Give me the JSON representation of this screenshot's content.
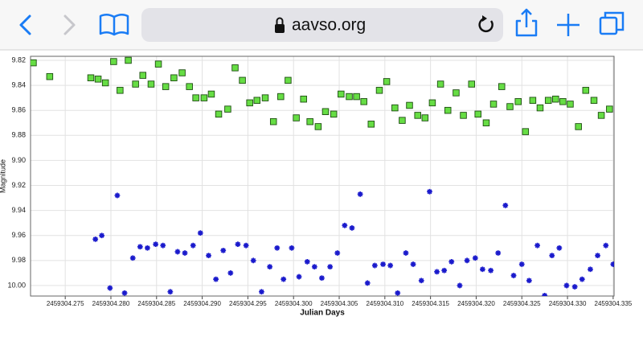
{
  "browser": {
    "url": "aavso.org"
  },
  "chart_data": {
    "type": "scatter",
    "x_label": "Julian Days",
    "y_label": "Magnitude",
    "xlim": [
      2459304.2712,
      2459304.3351
    ],
    "ylim": [
      9.8168,
      10.0084
    ],
    "y_inverted": true,
    "grid": true,
    "xticks": [
      2459304.275,
      {
        "value": 2459304.28,
        "label": "2459304.280"
      },
      2459304.285,
      {
        "value": 2459304.29,
        "label": "2459304.290"
      },
      2459304.295,
      {
        "value": 2459304.3,
        "label": "2459304.300"
      },
      2459304.305,
      {
        "value": 2459304.31,
        "label": "2459304.310"
      },
      2459304.315,
      {
        "value": 2459304.32,
        "label": "2459304.320"
      },
      2459304.325,
      {
        "value": 2459304.33,
        "label": "2459304.330"
      },
      2459304.335
    ],
    "yticks": [
      9.82,
      9.84,
      9.86,
      9.88,
      {
        "value": 9.9,
        "label": "9.90"
      },
      9.92,
      9.94,
      9.96,
      9.98,
      {
        "value": 10,
        "label": "10.00"
      }
    ],
    "series": [
      {
        "marker": "square",
        "color": "#66dd44",
        "x": [
          2459304.2715,
          2459304.2733,
          2459304.2778,
          2459304.2786,
          2459304.2794,
          2459304.2803,
          2459304.281,
          2459304.2819,
          2459304.2827,
          2459304.2835,
          2459304.2844,
          2459304.2852,
          2459304.286,
          2459304.2869,
          2459304.2878,
          2459304.2886,
          2459304.2893,
          2459304.2902,
          2459304.291,
          2459304.2918,
          2459304.2928,
          2459304.2936,
          2459304.2944,
          2459304.2952,
          2459304.296,
          2459304.2969,
          2459304.2978,
          2459304.2986,
          2459304.2994,
          2459304.3003,
          2459304.3011,
          2459304.3018,
          2459304.3027,
          2459304.3035,
          2459304.3044,
          2459304.3052,
          2459304.3061,
          2459304.3069,
          2459304.3077,
          2459304.3085,
          2459304.3094,
          2459304.3102,
          2459304.3111,
          2459304.3119,
          2459304.3127,
          2459304.3136,
          2459304.3144,
          2459304.3152,
          2459304.3161,
          2459304.3169,
          2459304.3178,
          2459304.3186,
          2459304.3195,
          2459304.3202,
          2459304.3211,
          2459304.3219,
          2459304.3228,
          2459304.3237,
          2459304.3246,
          2459304.3254,
          2459304.3262,
          2459304.327,
          2459304.3279,
          2459304.3287,
          2459304.3295,
          2459304.3303,
          2459304.3312,
          2459304.332,
          2459304.3329,
          2459304.3337,
          2459304.3346
        ],
        "values": [
          9.822,
          9.833,
          9.834,
          9.835,
          9.838,
          9.821,
          9.844,
          9.82,
          9.839,
          9.832,
          9.839,
          9.823,
          9.841,
          9.834,
          9.83,
          9.841,
          9.85,
          9.85,
          9.847,
          9.863,
          9.859,
          9.826,
          9.836,
          9.854,
          9.852,
          9.85,
          9.869,
          9.849,
          9.836,
          9.866,
          9.851,
          9.869,
          9.873,
          9.861,
          9.863,
          9.847,
          9.849,
          9.849,
          9.853,
          9.871,
          9.844,
          9.837,
          9.858,
          9.868,
          9.856,
          9.864,
          9.866,
          9.854,
          9.839,
          9.86,
          9.846,
          9.864,
          9.839,
          9.863,
          9.87,
          9.855,
          9.841,
          9.857,
          9.853,
          9.877,
          9.852,
          9.858,
          9.852,
          9.851,
          9.853,
          9.855,
          9.873,
          9.844,
          9.852,
          9.864,
          9.859
        ]
      },
      {
        "marker": "star",
        "color": "#1a1acc",
        "x": [
          2459304.2783,
          2459304.279,
          2459304.2799,
          2459304.2807,
          2459304.2815,
          2459304.2824,
          2459304.2832,
          2459304.284,
          2459304.2849,
          2459304.2857,
          2459304.2865,
          2459304.2873,
          2459304.2881,
          2459304.289,
          2459304.2898,
          2459304.2907,
          2459304.2915,
          2459304.2923,
          2459304.2931,
          2459304.2939,
          2459304.2948,
          2459304.2956,
          2459304.2965,
          2459304.2974,
          2459304.2982,
          2459304.2989,
          2459304.2998,
          2459304.3006,
          2459304.3015,
          2459304.3023,
          2459304.3031,
          2459304.304,
          2459304.3048,
          2459304.3056,
          2459304.3064,
          2459304.3073,
          2459304.3081,
          2459304.3089,
          2459304.3098,
          2459304.3106,
          2459304.3114,
          2459304.3123,
          2459304.3131,
          2459304.314,
          2459304.3149,
          2459304.3157,
          2459304.3165,
          2459304.3173,
          2459304.3182,
          2459304.319,
          2459304.3199,
          2459304.3207,
          2459304.3216,
          2459304.3224,
          2459304.3232,
          2459304.3241,
          2459304.325,
          2459304.3258,
          2459304.3267,
          2459304.3275,
          2459304.3283,
          2459304.3291,
          2459304.3299,
          2459304.3308,
          2459304.3316,
          2459304.3325,
          2459304.3333,
          2459304.3342,
          2459304.335
        ],
        "values": [
          9.963,
          9.96,
          10.002,
          9.928,
          10.006,
          9.978,
          9.969,
          9.97,
          9.967,
          9.968,
          10.005,
          9.973,
          9.974,
          9.968,
          9.958,
          9.976,
          9.995,
          9.972,
          9.99,
          9.967,
          9.968,
          9.98,
          10.005,
          9.985,
          9.97,
          9.995,
          9.97,
          9.993,
          9.981,
          9.985,
          9.994,
          9.985,
          9.974,
          9.952,
          9.954,
          9.927,
          9.998,
          9.984,
          9.983,
          9.984,
          10.006,
          9.974,
          9.983,
          9.996,
          9.925,
          9.989,
          9.988,
          9.981,
          10,
          9.98,
          9.978,
          9.987,
          9.988,
          9.974,
          9.936,
          9.992,
          9.983,
          9.996,
          9.968,
          10.008,
          9.976,
          9.97,
          10,
          10.001,
          9.995,
          9.987,
          9.976,
          9.968,
          9.983
        ]
      }
    ]
  }
}
